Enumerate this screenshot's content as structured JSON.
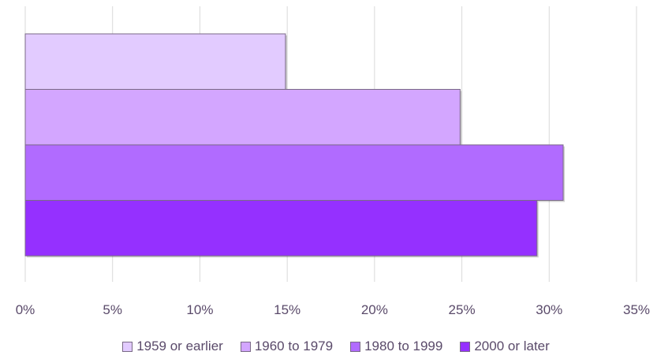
{
  "chart_data": {
    "type": "bar",
    "orientation": "horizontal",
    "title": "",
    "xlabel": "",
    "ylabel": "",
    "xlim": [
      0,
      35
    ],
    "xticks": [
      "0%",
      "5%",
      "10%",
      "15%",
      "20%",
      "25%",
      "30%",
      "35%"
    ],
    "grid": true,
    "legend_position": "bottom",
    "series": [
      {
        "name": "1959 or earlier",
        "value": 14.9,
        "color": "#e2cbff"
      },
      {
        "name": "1960 to 1979",
        "value": 24.9,
        "color": "#d3a6ff"
      },
      {
        "name": "1980 to 1999",
        "value": 30.8,
        "color": "#b16bff"
      },
      {
        "name": "2000 or later",
        "value": 29.3,
        "color": "#9530ff"
      }
    ]
  }
}
